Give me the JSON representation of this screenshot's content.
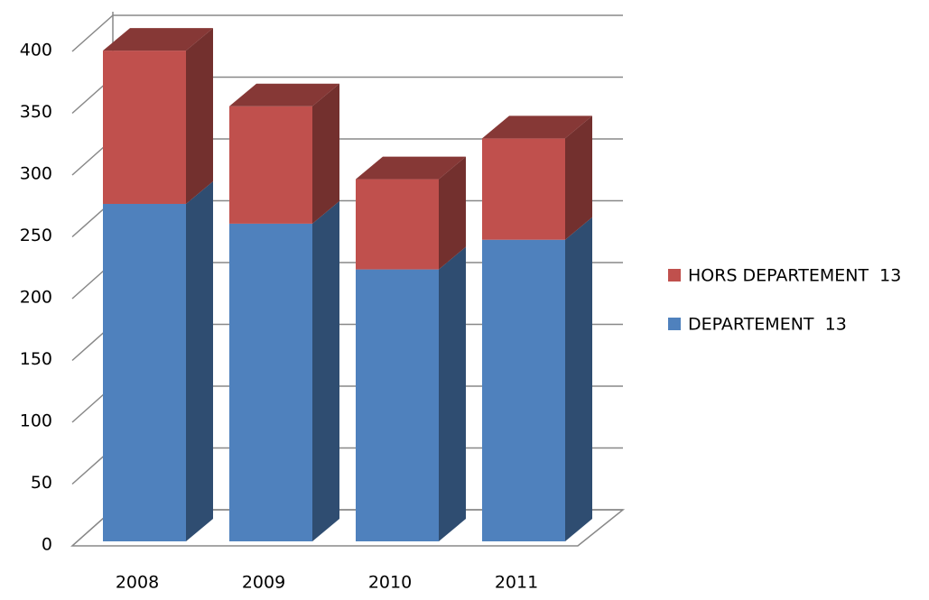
{
  "chart_data": {
    "type": "bar3d_stacked",
    "categories": [
      "2008",
      "2009",
      "2010",
      "2011"
    ],
    "series": [
      {
        "name": "DEPARTEMENT  13",
        "color": "#4f81bd",
        "values": [
          273,
          257,
          220,
          244
        ]
      },
      {
        "name": "HORS DEPARTEMENT  13",
        "color": "#c0504d",
        "values": [
          124,
          95,
          73,
          82
        ]
      }
    ],
    "ylim": [
      0,
      400
    ],
    "yticks": [
      0,
      50,
      100,
      150,
      200,
      250,
      300,
      350,
      400
    ],
    "grid": true
  }
}
